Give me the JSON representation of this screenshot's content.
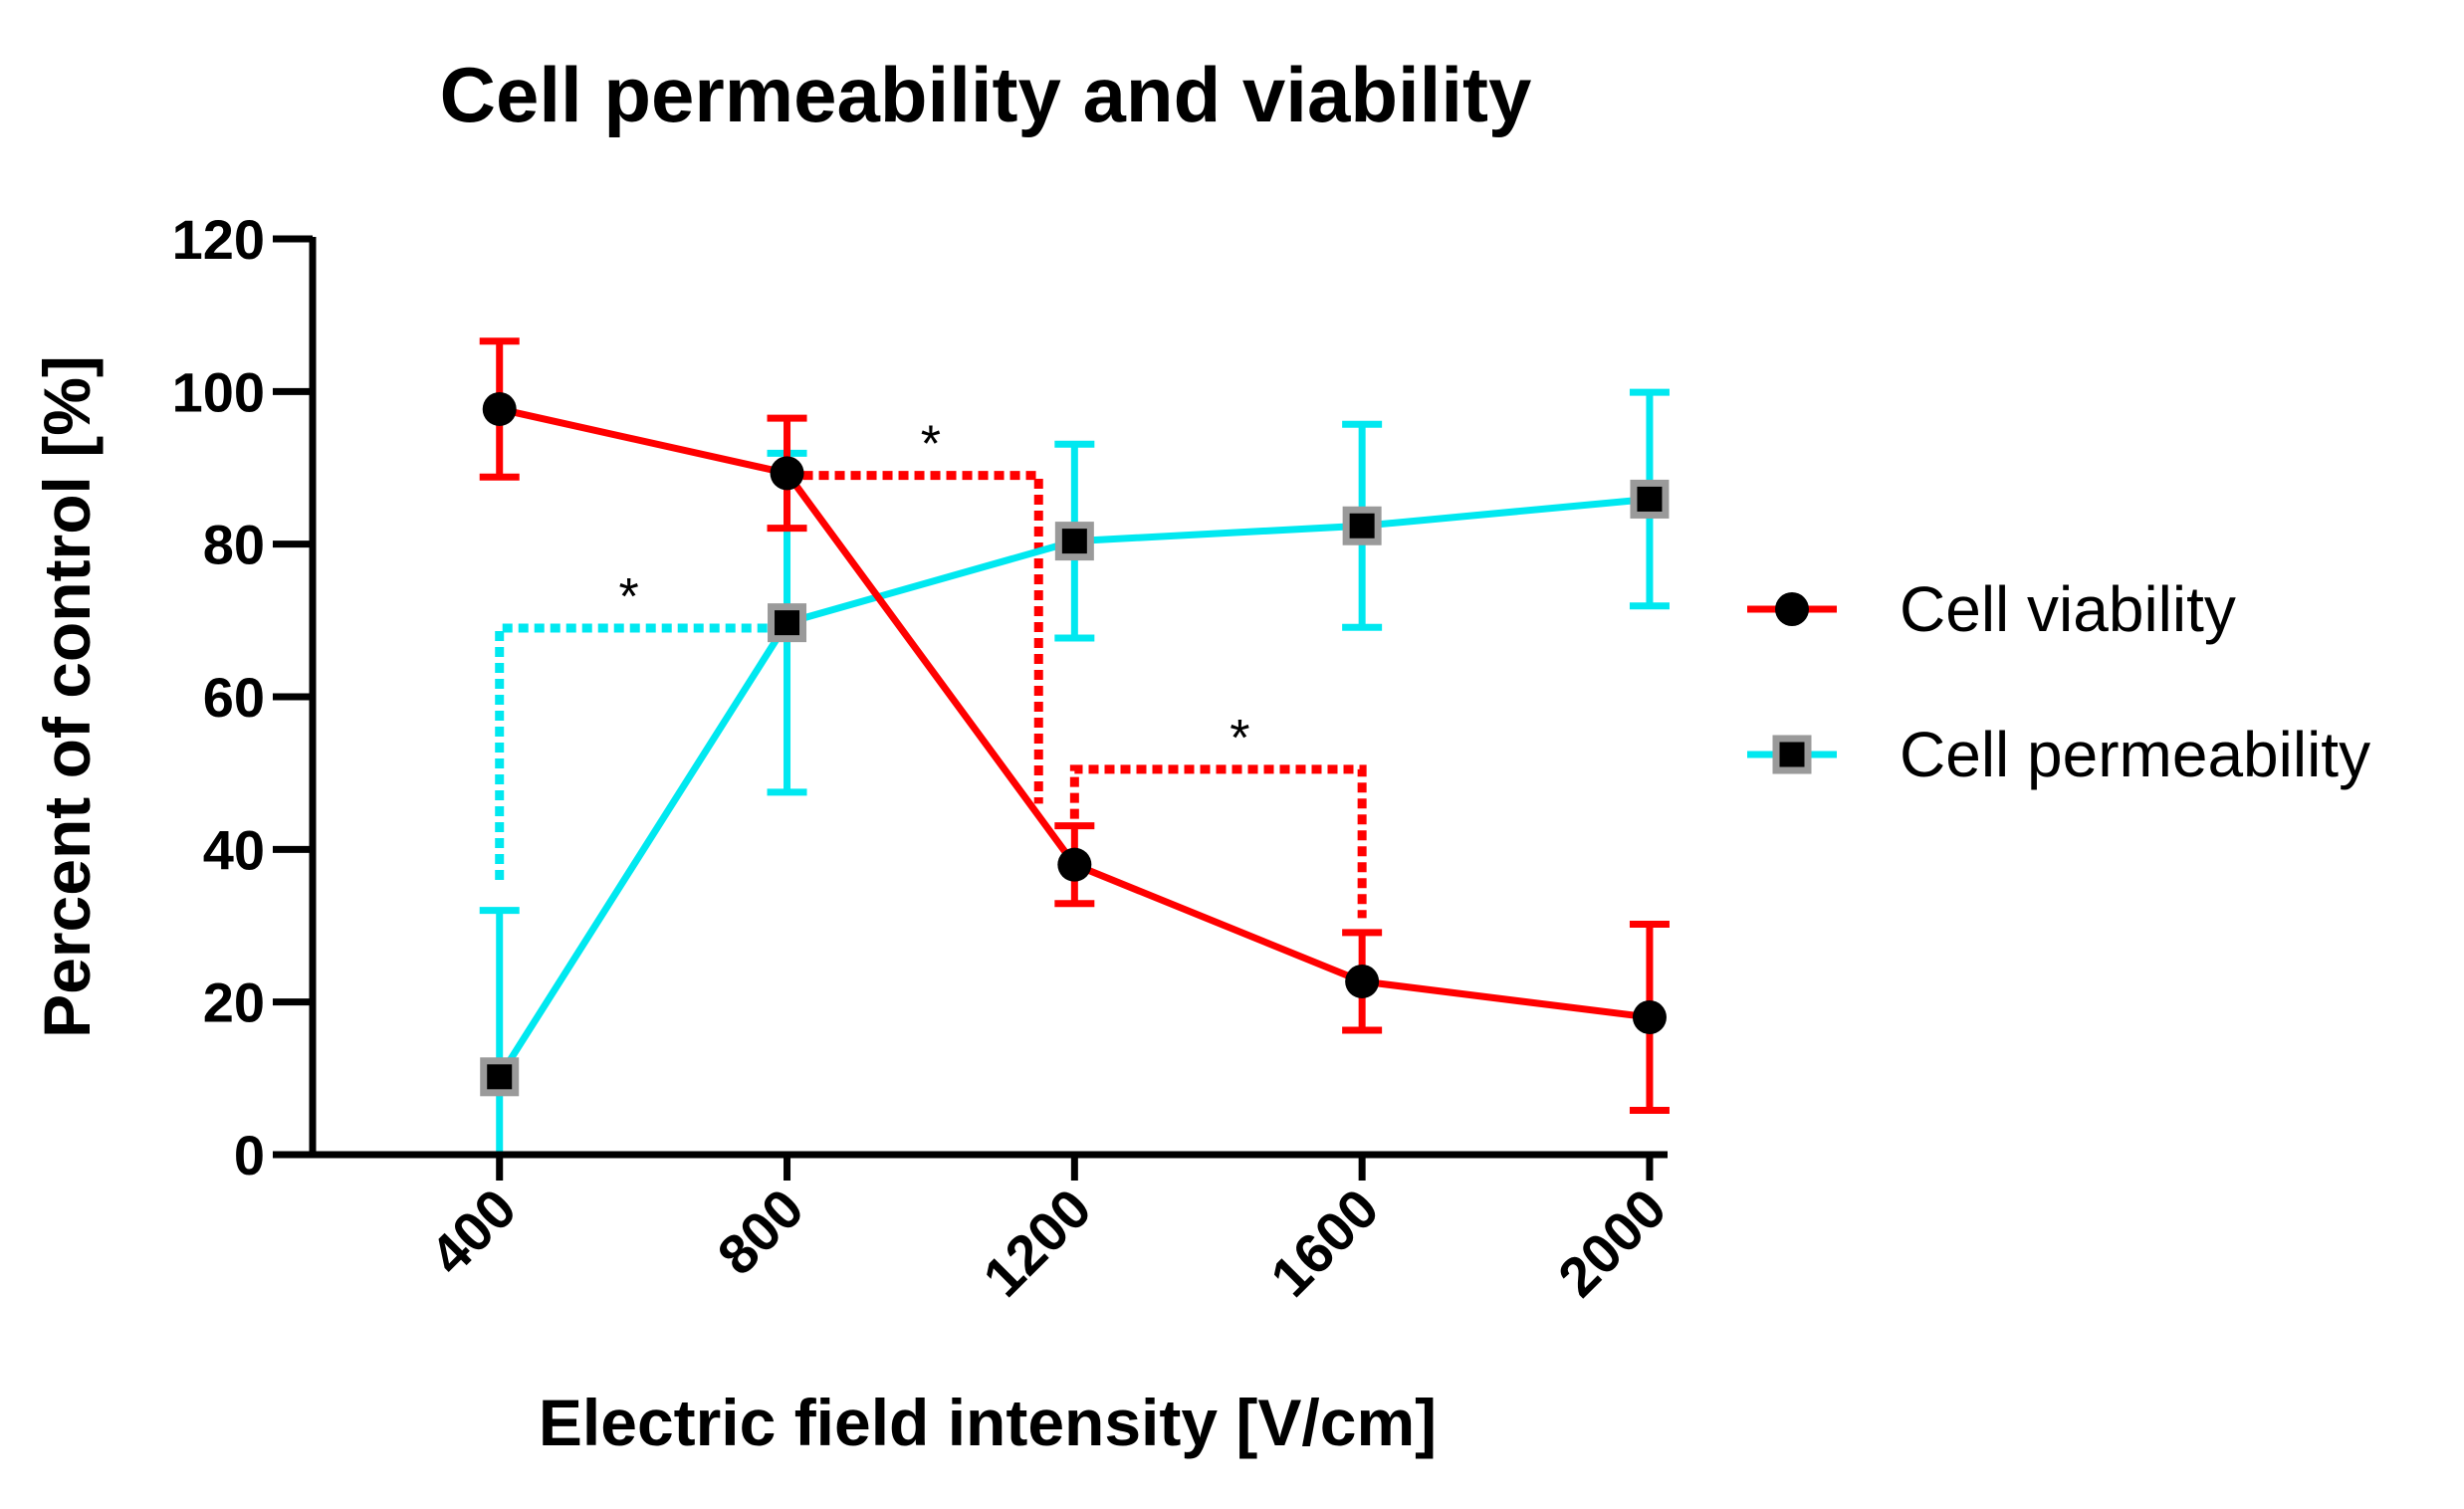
{
  "chart_data": {
    "type": "line",
    "title": "Cell permeability and viability",
    "xlabel": "Electric field intensity [V/cm]",
    "ylabel": "Percent of control [%]",
    "categories": [
      "400",
      "800",
      "1200",
      "1600",
      "2000"
    ],
    "x": [
      400,
      800,
      1200,
      1600,
      2000
    ],
    "xlim": [
      140,
      2025
    ],
    "ylim": [
      0,
      120
    ],
    "yticks": [
      0,
      20,
      40,
      60,
      80,
      100,
      120
    ],
    "legend_position": "right",
    "grid": false,
    "series": [
      {
        "name": "Cell viability",
        "color": "#ff0000",
        "marker": "circle",
        "values": [
          97.7,
          89.3,
          38.0,
          22.7,
          18.0
        ],
        "error": [
          8.9,
          7.2,
          5.1,
          6.4,
          12.2
        ]
      },
      {
        "name": "Cell permeability",
        "color": "#00e8f0",
        "marker": "square",
        "values": [
          10.2,
          69.7,
          80.4,
          82.4,
          85.9
        ],
        "error": [
          21.8,
          22.2,
          12.7,
          13.3,
          14.0
        ]
      }
    ],
    "significance": [
      {
        "label": "*",
        "color": "#ff0000",
        "from_x": 800,
        "to_x": 1150,
        "top": 89,
        "left_y": 89,
        "right_y": 46,
        "label_x": 1000
      },
      {
        "label": "*",
        "color": "#00e8f0",
        "from_x": 400,
        "to_x": 800,
        "top": 69,
        "left_y": 36,
        "right_y": 69,
        "label_x": 580
      },
      {
        "label": "*",
        "color": "#ff0000",
        "from_x": 1200,
        "to_x": 1600,
        "top": 50.5,
        "left_y": 44,
        "right_y": 31,
        "label_x": 1430
      }
    ]
  }
}
